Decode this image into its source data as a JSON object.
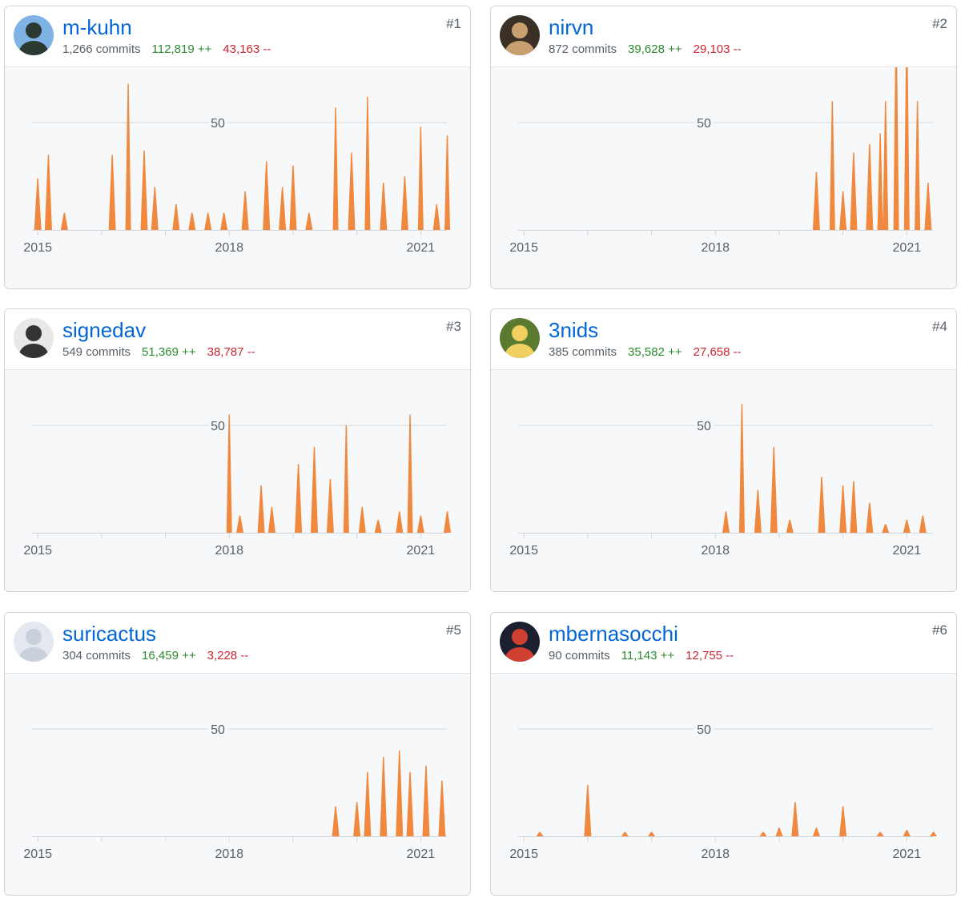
{
  "colors": {
    "area": "#f0883e",
    "grid": "#e1e4e8",
    "axis": "#d1d5da",
    "link": "#0366d6"
  },
  "chart_common": {
    "gridline_label": "50",
    "x_ticks": [
      "2015",
      "2018",
      "2021"
    ]
  },
  "contributors": [
    {
      "rank": "#1",
      "username": "m-kuhn",
      "commits": "1,266 commits",
      "additions": "112,819 ++",
      "deletions": "43,163 --",
      "avatar_icon": "user-avatar-icon",
      "chart_data": {
        "type": "area",
        "x_unit": "date",
        "ylabel": "commits",
        "gridline": 50,
        "x_ticks": [
          "2015",
          "2018",
          "2021"
        ],
        "peaks": [
          [
            "2015-01",
            24
          ],
          [
            "2015-03",
            35
          ],
          [
            "2015-06",
            8
          ],
          [
            "2016-03",
            35
          ],
          [
            "2016-06",
            68
          ],
          [
            "2016-09",
            37
          ],
          [
            "2016-11",
            20
          ],
          [
            "2017-03",
            12
          ],
          [
            "2017-06",
            8
          ],
          [
            "2017-09",
            8
          ],
          [
            "2017-12",
            8
          ],
          [
            "2018-04",
            18
          ],
          [
            "2018-08",
            32
          ],
          [
            "2018-11",
            20
          ],
          [
            "2019-01",
            30
          ],
          [
            "2019-04",
            8
          ],
          [
            "2019-09",
            57
          ],
          [
            "2019-12",
            36
          ],
          [
            "2020-03",
            62
          ],
          [
            "2020-06",
            22
          ],
          [
            "2020-10",
            25
          ],
          [
            "2021-01",
            48
          ],
          [
            "2021-04",
            12
          ],
          [
            "2021-06",
            44
          ]
        ]
      }
    },
    {
      "rank": "#2",
      "username": "nirvn",
      "commits": "872 commits",
      "additions": "39,628 ++",
      "deletions": "29,103 --",
      "avatar_icon": "user-avatar-icon",
      "chart_data": {
        "type": "area",
        "x_unit": "date",
        "ylabel": "commits",
        "gridline": 50,
        "x_ticks": [
          "2015",
          "2018",
          "2021"
        ],
        "peaks": [
          [
            "2019-08",
            27
          ],
          [
            "2019-11",
            60
          ],
          [
            "2020-01",
            18
          ],
          [
            "2020-03",
            36
          ],
          [
            "2020-06",
            40
          ],
          [
            "2020-08",
            45
          ],
          [
            "2020-09",
            60
          ],
          [
            "2020-11",
            96
          ],
          [
            "2021-01",
            95
          ],
          [
            "2021-03",
            60
          ],
          [
            "2021-05",
            22
          ]
        ]
      }
    },
    {
      "rank": "#3",
      "username": "signedav",
      "commits": "549 commits",
      "additions": "51,369 ++",
      "deletions": "38,787 --",
      "avatar_icon": "user-avatar-icon",
      "chart_data": {
        "type": "area",
        "x_unit": "date",
        "ylabel": "commits",
        "gridline": 50,
        "x_ticks": [
          "2015",
          "2018",
          "2021"
        ],
        "peaks": [
          [
            "2018-01",
            55
          ],
          [
            "2018-03",
            8
          ],
          [
            "2018-07",
            22
          ],
          [
            "2018-09",
            12
          ],
          [
            "2019-02",
            32
          ],
          [
            "2019-05",
            40
          ],
          [
            "2019-08",
            25
          ],
          [
            "2019-11",
            50
          ],
          [
            "2020-02",
            12
          ],
          [
            "2020-05",
            6
          ],
          [
            "2020-09",
            10
          ],
          [
            "2020-11",
            55
          ],
          [
            "2021-01",
            8
          ],
          [
            "2021-06",
            10
          ]
        ]
      }
    },
    {
      "rank": "#4",
      "username": "3nids",
      "commits": "385 commits",
      "additions": "35,582 ++",
      "deletions": "27,658 --",
      "avatar_icon": "user-avatar-icon",
      "chart_data": {
        "type": "area",
        "x_unit": "date",
        "ylabel": "commits",
        "gridline": 50,
        "x_ticks": [
          "2015",
          "2018",
          "2021"
        ],
        "peaks": [
          [
            "2018-03",
            10
          ],
          [
            "2018-06",
            60
          ],
          [
            "2018-09",
            20
          ],
          [
            "2018-12",
            40
          ],
          [
            "2019-03",
            6
          ],
          [
            "2019-09",
            26
          ],
          [
            "2020-01",
            22
          ],
          [
            "2020-03",
            24
          ],
          [
            "2020-06",
            14
          ],
          [
            "2020-09",
            4
          ],
          [
            "2021-01",
            6
          ],
          [
            "2021-04",
            8
          ]
        ]
      }
    },
    {
      "rank": "#5",
      "username": "suricactus",
      "commits": "304 commits",
      "additions": "16,459 ++",
      "deletions": "3,228 --",
      "avatar_icon": "user-avatar-icon",
      "chart_data": {
        "type": "area",
        "x_unit": "date",
        "ylabel": "commits",
        "gridline": 50,
        "x_ticks": [
          "2015",
          "2018",
          "2021"
        ],
        "peaks": [
          [
            "2019-09",
            14
          ],
          [
            "2020-01",
            16
          ],
          [
            "2020-03",
            30
          ],
          [
            "2020-06",
            37
          ],
          [
            "2020-09",
            40
          ],
          [
            "2020-11",
            30
          ],
          [
            "2021-02",
            33
          ],
          [
            "2021-05",
            26
          ]
        ]
      }
    },
    {
      "rank": "#6",
      "username": "mbernasocchi",
      "commits": "90 commits",
      "additions": "11,143 ++",
      "deletions": "12,755 --",
      "avatar_icon": "user-avatar-icon",
      "chart_data": {
        "type": "area",
        "x_unit": "date",
        "ylabel": "commits",
        "gridline": 50,
        "x_ticks": [
          "2015",
          "2018",
          "2021"
        ],
        "peaks": [
          [
            "2015-04",
            2
          ],
          [
            "2016-01",
            24
          ],
          [
            "2016-08",
            2
          ],
          [
            "2017-01",
            2
          ],
          [
            "2018-10",
            2
          ],
          [
            "2019-01",
            4
          ],
          [
            "2019-04",
            16
          ],
          [
            "2019-08",
            4
          ],
          [
            "2020-01",
            14
          ],
          [
            "2020-08",
            2
          ],
          [
            "2021-01",
            3
          ],
          [
            "2021-06",
            2
          ]
        ]
      }
    }
  ]
}
